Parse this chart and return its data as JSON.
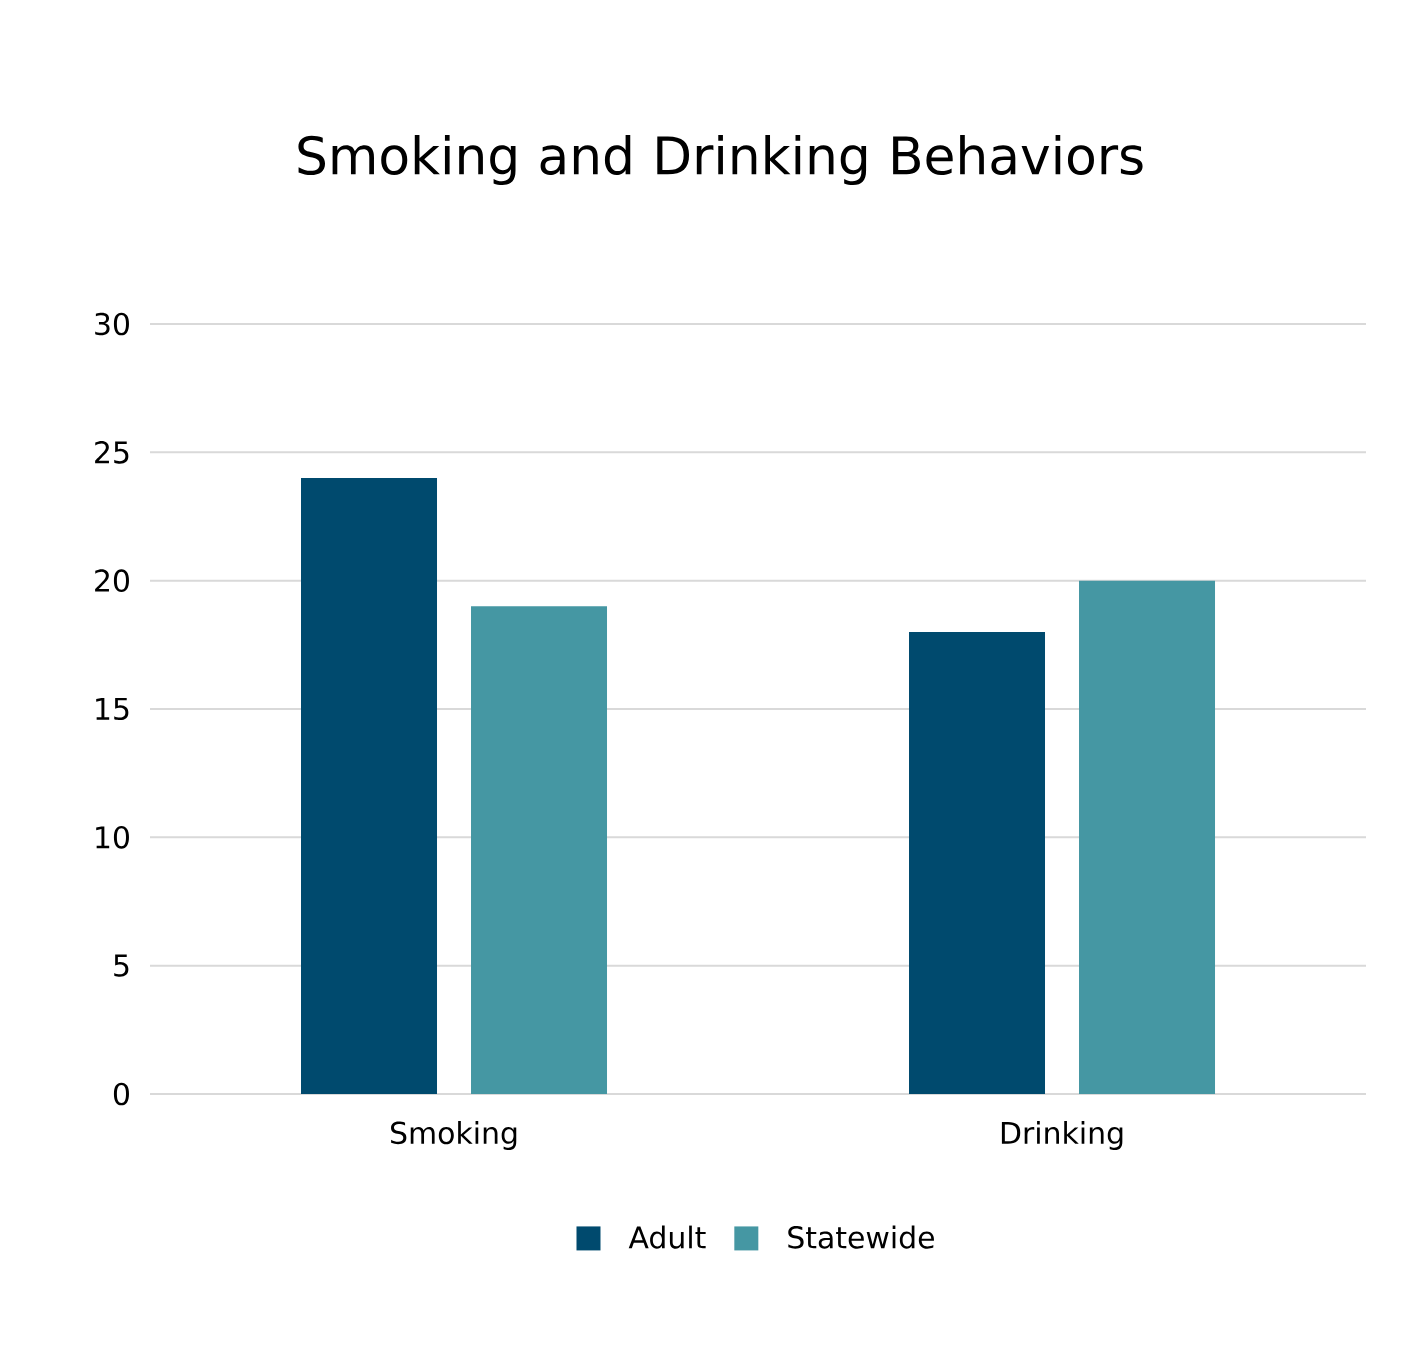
{
  "chart_data": {
    "type": "bar",
    "title": "Smoking and Drinking Behaviors",
    "categories": [
      "Smoking",
      "Drinking"
    ],
    "series": [
      {
        "name": "Adult",
        "color": "#004a6e",
        "values": [
          24,
          18
        ]
      },
      {
        "name": "Statewide",
        "color": "#4597a3",
        "values": [
          19,
          20
        ]
      }
    ],
    "ylim": [
      0,
      30
    ],
    "yticks": [
      0,
      5,
      10,
      15,
      20,
      25,
      30
    ],
    "grid": "y",
    "legend": "bottom"
  }
}
